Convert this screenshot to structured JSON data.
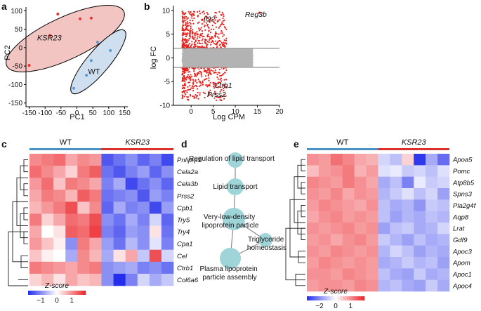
{
  "panels": {
    "a": {
      "label": "a",
      "chart_data": {
        "type": "scatter",
        "title": "",
        "xlabel": "PC1",
        "ylabel": "PC2",
        "xlim": [
          -160,
          160
        ],
        "ylim": [
          -160,
          110
        ],
        "xticks": [
          -150,
          -100,
          -50,
          0,
          50,
          100,
          150
        ],
        "yticks": [
          -150,
          -100,
          -50,
          0,
          50,
          100
        ],
        "groups": [
          {
            "name": "KSR23",
            "color": "#e8322e",
            "fill": "#f3c5c2",
            "points": [
              [
                -60,
                91
              ],
              [
                10,
                78
              ],
              [
                45,
                80
              ],
              [
                -85,
                33
              ],
              [
                -150,
                -48
              ]
            ]
          },
          {
            "name": "WT",
            "color": "#5b9bd5",
            "fill": "#cfdff0",
            "points": [
              [
                65,
                15
              ],
              [
                105,
                -8
              ],
              [
                45,
                -35
              ],
              [
                30,
                -75
              ],
              [
                -10,
                -110
              ]
            ]
          }
        ]
      }
    },
    "b": {
      "label": "b",
      "chart_data": {
        "type": "scatter",
        "title": "",
        "xlabel": "Log CPM",
        "ylabel": "log FC",
        "xlim": [
          -4,
          20
        ],
        "ylim": [
          -10,
          11
        ],
        "xticks": [
          0,
          5,
          10,
          15,
          20
        ],
        "yticks": [
          -10,
          -5,
          0,
          5,
          10
        ],
        "thresholds": [
          2,
          -2
        ],
        "labels": [
          "Reg3b",
          "Il22",
          "Ctrb1",
          "Prss2"
        ],
        "highlight_points": [
          [
            15.5,
            9.5
          ],
          [
            2.5,
            8.0
          ],
          [
            7.5,
            -5.8
          ],
          [
            8.0,
            -6.2
          ],
          [
            5.5,
            -7.6
          ]
        ],
        "colors": {
          "significant": "#e8201c",
          "nonsignificant": "#b3b3b3"
        }
      }
    },
    "c": {
      "label": "c",
      "chart_data": {
        "type": "heatmap",
        "groups": [
          "WT",
          "KSR23"
        ],
        "group_colors": [
          "#4a90c2",
          "#d9302c"
        ],
        "genes": [
          "Pnliprp1",
          "Cela2a",
          "Cela3b",
          "Prss2",
          "Cpb1",
          "Try5",
          "Try4",
          "Cpa1",
          "Cel",
          "Ctrb1",
          "Col6a6"
        ],
        "legend_title": "Z-score",
        "legend_ticks": [
          "−1",
          "0",
          "1"
        ],
        "zlim": [
          -1.5,
          1.5
        ],
        "values": [
          [
            0.8,
            0.9,
            1.0,
            0.6,
            0.8,
            0.7,
            -1.2,
            -1.0,
            -0.8,
            -1.1,
            -0.9,
            -1.3
          ],
          [
            1.0,
            0.8,
            0.6,
            0.3,
            0.9,
            1.1,
            -1.0,
            -1.2,
            -0.9,
            -0.7,
            -1.1,
            -0.8
          ],
          [
            0.7,
            1.0,
            0.4,
            0.9,
            0.8,
            0.6,
            -0.9,
            -0.6,
            -1.3,
            -1.0,
            -0.8,
            -1.1
          ],
          [
            0.6,
            0.9,
            0.8,
            0.5,
            1.1,
            0.9,
            -1.0,
            -0.9,
            -0.8,
            -1.2,
            -0.7,
            -0.9
          ],
          [
            0.5,
            0.7,
            0.9,
            1.2,
            0.4,
            0.8,
            -1.1,
            -0.6,
            -0.9,
            -0.8,
            -1.3,
            -0.7
          ],
          [
            0.9,
            0.3,
            0.6,
            1.0,
            0.9,
            1.2,
            -0.8,
            -1.0,
            -0.6,
            -0.9,
            -0.3,
            -1.1
          ],
          [
            0.6,
            0.0,
            0.2,
            1.1,
            1.0,
            1.3,
            -0.9,
            -1.1,
            -0.7,
            -0.8,
            0.2,
            -1.0
          ],
          [
            0.7,
            0.4,
            0.1,
            -0.8,
            0.9,
            0.6,
            -0.7,
            -1.0,
            -0.5,
            -0.8,
            -0.2,
            -0.9
          ],
          [
            0.4,
            0.1,
            0.0,
            -0.6,
            0.8,
            0.5,
            -0.6,
            0.2,
            0.6,
            -0.4,
            1.2,
            -0.3
          ],
          [
            0.9,
            0.8,
            0.7,
            0.6,
            0.8,
            0.9,
            -0.8,
            -0.7,
            -0.6,
            -0.9,
            -0.8,
            -1.0
          ],
          [
            0.3,
            0.5,
            0.2,
            0.6,
            0.4,
            0.5,
            -0.8,
            -1.5,
            -0.9,
            -0.3,
            -0.6,
            -0.4
          ]
        ]
      }
    },
    "d": {
      "label": "d",
      "nodes": [
        "Regulation of lipid transport",
        "Lipid transport",
        "Very-low-density lipoprotein particle",
        "Triglyceride homeostasis",
        "Plasma lipoprotein particle assembly"
      ],
      "node_color": "#9fd4d8"
    },
    "e": {
      "label": "e",
      "chart_data": {
        "type": "heatmap",
        "groups": [
          "WT",
          "KSR23"
        ],
        "group_colors": [
          "#4a90c2",
          "#d9302c"
        ],
        "genes": [
          "Apoa5",
          "Pomc",
          "Atp8b5",
          "Spns3",
          "Pla2g4f",
          "Aqp8",
          "Lrat",
          "Gdf9",
          "Apoc3",
          "Apom",
          "Apoc1",
          "Apoc4"
        ],
        "legend_title": "Z-score",
        "legend_ticks": [
          "−2",
          "0",
          "1"
        ],
        "zlim": [
          -2,
          2
        ],
        "values": [
          [
            1.0,
            0.9,
            1.3,
            1.1,
            0.8,
            0.7,
            -0.4,
            -0.6,
            0.4,
            -1.9,
            -0.8,
            -1.4
          ],
          [
            0.6,
            0.9,
            1.0,
            1.2,
            0.7,
            0.9,
            -0.3,
            -0.2,
            -0.5,
            -0.4,
            -0.6,
            -0.3
          ],
          [
            1.1,
            1.0,
            0.9,
            1.2,
            1.0,
            0.8,
            -0.8,
            -0.6,
            -1.2,
            -0.2,
            -0.5,
            -0.4
          ],
          [
            1.0,
            0.9,
            1.1,
            0.8,
            1.0,
            0.9,
            -0.7,
            -0.5,
            -0.3,
            -0.6,
            -0.4,
            -0.9
          ],
          [
            0.9,
            1.1,
            1.0,
            0.9,
            0.8,
            1.0,
            -0.6,
            -0.8,
            -0.7,
            -1.0,
            -0.5,
            -0.6
          ],
          [
            0.8,
            1.0,
            1.1,
            0.9,
            1.0,
            0.9,
            -0.6,
            -0.9,
            -0.7,
            -0.8,
            -0.6,
            -0.7
          ],
          [
            1.0,
            0.9,
            1.0,
            1.1,
            0.9,
            1.0,
            -0.9,
            -0.6,
            -0.5,
            -0.8,
            -0.7,
            -0.4
          ],
          [
            0.9,
            1.0,
            0.8,
            1.0,
            1.1,
            0.9,
            -0.5,
            -0.7,
            -0.9,
            -0.6,
            -0.8,
            -0.7
          ],
          [
            1.0,
            0.9,
            1.1,
            1.0,
            0.9,
            1.0,
            -0.7,
            -0.4,
            -0.6,
            -0.9,
            -0.7,
            -0.8
          ],
          [
            0.9,
            1.1,
            1.0,
            0.9,
            1.0,
            0.9,
            -0.8,
            -0.7,
            -0.5,
            -0.7,
            -0.6,
            -0.9
          ],
          [
            1.0,
            1.0,
            0.9,
            1.1,
            1.0,
            0.9,
            -0.6,
            -0.8,
            -0.9,
            -0.5,
            -0.8,
            -0.7
          ],
          [
            0.9,
            1.0,
            1.0,
            0.9,
            1.1,
            1.0,
            -0.7,
            -0.6,
            -0.8,
            -0.9,
            -0.5,
            -0.8
          ]
        ]
      }
    }
  }
}
